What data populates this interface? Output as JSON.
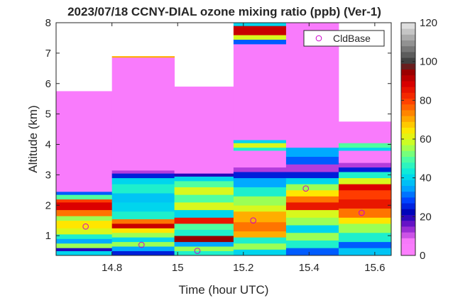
{
  "chart_data": {
    "type": "heatmap",
    "title": "2023/07/18 CCNY-DIAL ozone mixing ratio (ppb) (Ver-1)",
    "xlabel": "Time (hour UTC)",
    "ylabel": "Altitude (km)",
    "xlim": [
      14.63,
      15.65
    ],
    "ylim": [
      0.35,
      8
    ],
    "x_ticks": [
      14.8,
      15,
      15.2,
      15.4,
      15.6
    ],
    "x_tick_labels": [
      "14.8",
      "15",
      "15.2",
      "15.4",
      "15.6"
    ],
    "y_ticks": [
      1,
      2,
      3,
      4,
      5,
      6,
      7,
      8
    ],
    "y_tick_labels": [
      "1",
      "2",
      "3",
      "4",
      "5",
      "6",
      "7",
      "8"
    ],
    "colorbar": {
      "range": [
        0,
        120
      ],
      "ticks": [
        0,
        20,
        40,
        60,
        80,
        100,
        120
      ],
      "tick_labels": [
        "0",
        "20",
        "40",
        "60",
        "80",
        "100",
        "120"
      ]
    },
    "legend": {
      "label": "CldBase",
      "position": "top-right",
      "marker": "circle",
      "color": "#cc00cc"
    },
    "profiles": [
      {
        "t0": 14.63,
        "t1": 14.8,
        "top": 5.75,
        "layers": [
          [
            0.35,
            0.5,
            40
          ],
          [
            0.5,
            0.6,
            20
          ],
          [
            0.6,
            0.75,
            55
          ],
          [
            0.75,
            0.9,
            35
          ],
          [
            0.9,
            1.05,
            45
          ],
          [
            1.05,
            1.25,
            60
          ],
          [
            1.25,
            1.5,
            65
          ],
          [
            1.5,
            1.65,
            55
          ],
          [
            1.65,
            1.85,
            75
          ],
          [
            1.85,
            2.1,
            88
          ],
          [
            2.1,
            2.2,
            80
          ],
          [
            2.2,
            2.35,
            50
          ],
          [
            2.35,
            2.45,
            30
          ],
          [
            2.45,
            5.75,
            5
          ]
        ]
      },
      {
        "t0": 14.8,
        "t1": 14.99,
        "top": 6.9,
        "layers": [
          [
            0.35,
            0.5,
            25
          ],
          [
            0.5,
            0.65,
            35
          ],
          [
            0.65,
            0.8,
            55
          ],
          [
            0.8,
            0.95,
            40
          ],
          [
            0.95,
            1.1,
            55
          ],
          [
            1.1,
            1.25,
            65
          ],
          [
            1.25,
            1.4,
            90
          ],
          [
            1.4,
            1.55,
            75
          ],
          [
            1.55,
            1.8,
            45
          ],
          [
            1.8,
            2.1,
            40
          ],
          [
            2.1,
            2.4,
            38
          ],
          [
            2.4,
            2.7,
            45
          ],
          [
            2.7,
            2.9,
            40
          ],
          [
            2.9,
            3.05,
            25
          ],
          [
            3.05,
            3.15,
            12
          ],
          [
            3.15,
            6.86,
            5
          ],
          [
            6.86,
            6.9,
            70
          ]
        ]
      },
      {
        "t0": 14.99,
        "t1": 15.17,
        "top": 5.9,
        "layers": [
          [
            0.35,
            0.5,
            45
          ],
          [
            0.5,
            0.65,
            55
          ],
          [
            0.65,
            0.8,
            35
          ],
          [
            0.8,
            1.0,
            95
          ],
          [
            1.0,
            1.2,
            45
          ],
          [
            1.2,
            1.4,
            50
          ],
          [
            1.4,
            1.6,
            85
          ],
          [
            1.6,
            1.85,
            40
          ],
          [
            1.85,
            2.1,
            60
          ],
          [
            2.1,
            2.35,
            50
          ],
          [
            2.35,
            2.6,
            60
          ],
          [
            2.6,
            2.8,
            50
          ],
          [
            2.8,
            2.95,
            40
          ],
          [
            2.95,
            3.05,
            20
          ],
          [
            3.05,
            5.9,
            5
          ]
        ]
      },
      {
        "t0": 15.17,
        "t1": 15.33,
        "top": 8.0,
        "layers": [
          [
            0.35,
            0.55,
            40
          ],
          [
            0.55,
            0.75,
            55
          ],
          [
            0.75,
            0.95,
            45
          ],
          [
            0.95,
            1.15,
            70
          ],
          [
            1.15,
            1.45,
            75
          ],
          [
            1.45,
            1.8,
            70
          ],
          [
            1.8,
            2.0,
            60
          ],
          [
            2.0,
            2.3,
            55
          ],
          [
            2.3,
            2.6,
            45
          ],
          [
            2.6,
            2.9,
            35
          ],
          [
            2.9,
            3.1,
            25
          ],
          [
            3.1,
            3.25,
            12
          ],
          [
            3.25,
            3.8,
            5
          ],
          [
            3.8,
            3.9,
            45
          ],
          [
            3.9,
            4.05,
            60
          ],
          [
            4.05,
            4.15,
            40
          ],
          [
            4.15,
            7.3,
            5
          ],
          [
            7.3,
            7.45,
            30
          ],
          [
            7.45,
            7.6,
            60
          ],
          [
            7.6,
            7.9,
            90
          ],
          [
            7.9,
            8.0,
            40
          ]
        ]
      },
      {
        "t0": 15.33,
        "t1": 15.49,
        "top": 8.0,
        "layers": [
          [
            0.35,
            0.6,
            30
          ],
          [
            0.6,
            0.85,
            45
          ],
          [
            0.85,
            1.1,
            55
          ],
          [
            1.1,
            1.35,
            40
          ],
          [
            1.35,
            1.6,
            55
          ],
          [
            1.6,
            1.85,
            60
          ],
          [
            1.85,
            2.1,
            85
          ],
          [
            2.1,
            2.3,
            75
          ],
          [
            2.3,
            2.5,
            65
          ],
          [
            2.5,
            2.7,
            55
          ],
          [
            2.7,
            2.9,
            40
          ],
          [
            2.9,
            3.1,
            25
          ],
          [
            3.1,
            3.35,
            12
          ],
          [
            3.35,
            3.6,
            30
          ],
          [
            3.6,
            3.9,
            35
          ],
          [
            3.9,
            8.0,
            5
          ]
        ]
      },
      {
        "t0": 15.49,
        "t1": 15.65,
        "top": 4.75,
        "layers": [
          [
            0.35,
            0.6,
            38
          ],
          [
            0.6,
            0.8,
            30
          ],
          [
            0.8,
            1.1,
            45
          ],
          [
            1.1,
            1.4,
            55
          ],
          [
            1.4,
            1.6,
            65
          ],
          [
            1.6,
            1.9,
            75
          ],
          [
            1.9,
            2.2,
            85
          ],
          [
            2.2,
            2.5,
            80
          ],
          [
            2.5,
            2.7,
            88
          ],
          [
            2.7,
            2.9,
            60
          ],
          [
            2.9,
            3.1,
            45
          ],
          [
            3.1,
            3.25,
            25
          ],
          [
            3.25,
            3.4,
            12
          ],
          [
            3.4,
            3.8,
            5
          ],
          [
            3.8,
            3.9,
            40
          ],
          [
            3.9,
            4.05,
            50
          ],
          [
            4.05,
            4.75,
            5
          ]
        ]
      }
    ],
    "cloud_base": [
      {
        "t": 14.72,
        "alt": 1.3
      },
      {
        "t": 14.89,
        "alt": 0.7
      },
      {
        "t": 15.06,
        "alt": 0.5
      },
      {
        "t": 15.23,
        "alt": 1.5
      },
      {
        "t": 15.39,
        "alt": 2.55
      },
      {
        "t": 15.56,
        "alt": 1.75
      }
    ]
  }
}
